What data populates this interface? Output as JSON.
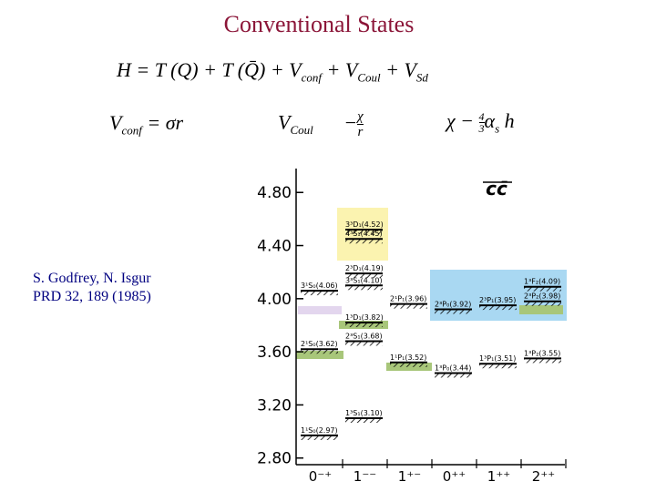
{
  "title": "Conventional States",
  "eq1": [
    "H = T (Q) + T (Q̄) + V",
    "conf",
    " + V",
    "Coul",
    " + V",
    "Sd"
  ],
  "eq2": [
    "V",
    "conf",
    " = σr"
  ],
  "eq3": [
    "V",
    "Coul",
    "−",
    "χ",
    "r"
  ],
  "eq4": [
    "χ − ",
    "4",
    "3",
    "α",
    "s",
    "h"
  ],
  "citation": [
    "S. Godfrey, N. Isgur",
    "PRD 32, 189 (1985)"
  ],
  "chart_data": {
    "type": "levels",
    "label": "cc̄",
    "ylim": [
      2.75,
      4.98
    ],
    "yticks": [
      {
        "value": 2.8,
        "label": "2.80"
      },
      {
        "value": 3.2,
        "label": "3.20"
      },
      {
        "value": 3.6,
        "label": "3.60"
      },
      {
        "value": 4.0,
        "label": "4.00"
      },
      {
        "value": 4.4,
        "label": "4.40"
      },
      {
        "value": 4.8,
        "label": "4.80"
      }
    ],
    "columns": [
      {
        "label": "0⁻⁺",
        "levels": [
          {
            "label": "1¹S₀(2.97)",
            "mass": 2.97
          },
          {
            "label": "2¹S₀(3.62)",
            "mass": 3.62
          },
          {
            "label": "3¹S₀(4.06)",
            "mass": 4.06
          }
        ]
      },
      {
        "label": "1⁻⁻",
        "levels": [
          {
            "label": "1³S₁(3.10)",
            "mass": 3.1
          },
          {
            "label": "2³S₁(3.68)",
            "mass": 3.68
          },
          {
            "label": "1³D₁(3.82)",
            "mass": 3.82
          },
          {
            "label": "3³S₁(4.10)",
            "mass": 4.1
          },
          {
            "label": "2³D₁(4.19)",
            "mass": 4.19
          },
          {
            "label": "4³S₁(4.45)",
            "mass": 4.45
          },
          {
            "label": "3³D₁(4.52)",
            "mass": 4.52
          }
        ]
      },
      {
        "label": "1⁺⁻",
        "levels": [
          {
            "label": "1¹P₁(3.52)",
            "mass": 3.52
          },
          {
            "label": "2¹P₁(3.96)",
            "mass": 3.96
          }
        ]
      },
      {
        "label": "0⁺⁺",
        "levels": [
          {
            "label": "1³P₀(3.44)",
            "mass": 3.44
          },
          {
            "label": "2³P₀(3.92)",
            "mass": 3.92
          }
        ]
      },
      {
        "label": "1⁺⁺",
        "levels": [
          {
            "label": "1³P₁(3.51)",
            "mass": 3.51
          },
          {
            "label": "2³P₁(3.95)",
            "mass": 3.95
          }
        ]
      },
      {
        "label": "2⁺⁺",
        "levels": [
          {
            "label": "1³P₂(3.55)",
            "mass": 3.55
          },
          {
            "label": "2³P₂(3.98)",
            "mass": 3.98
          },
          {
            "label": "1³F₂(4.09)",
            "mass": 4.09
          }
        ]
      }
    ]
  }
}
